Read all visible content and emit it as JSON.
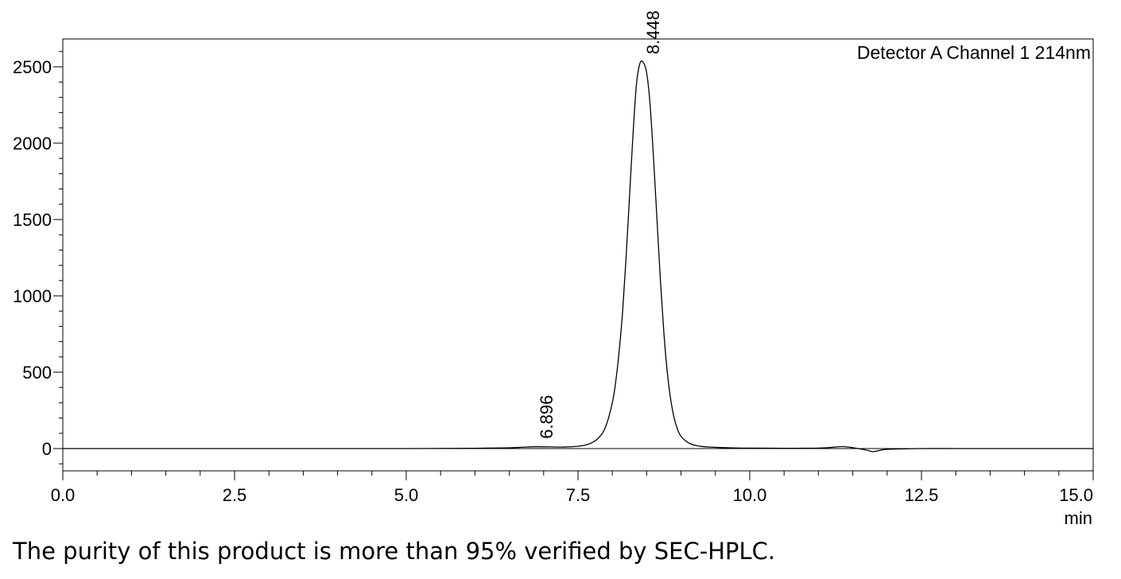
{
  "chart_data": {
    "type": "line",
    "legend": "Detector A Channel 1 214nm",
    "legend_position": "top-right",
    "x_unit": "min",
    "xlim": [
      0,
      15
    ],
    "ylim": [
      -150,
      2700
    ],
    "x_ticks": [
      0,
      2.5,
      5,
      7.5,
      10,
      12.5,
      15
    ],
    "x_tick_labels": [
      "0.0",
      "2.5",
      "5.0",
      "7.5",
      "10.0",
      "12.5",
      "15.0"
    ],
    "y_ticks": [
      0,
      500,
      1000,
      1500,
      2000,
      2500
    ],
    "y_tick_labels": [
      "0",
      "500",
      "1000",
      "1500",
      "2000",
      "2500"
    ],
    "grid": false,
    "baseline": 0,
    "peaks": [
      {
        "label": "6.896",
        "x": 6.896,
        "y": 12
      },
      {
        "label": "8.448",
        "x": 8.448,
        "y": 2530
      }
    ],
    "series": [
      {
        "x": [
          0,
          0.5,
          1,
          2,
          3,
          4,
          5,
          5.5,
          6,
          6.5,
          6.7,
          6.9,
          7.1,
          7.3,
          7.5,
          7.6,
          7.7,
          7.8,
          7.9,
          8.0,
          8.05,
          8.1,
          8.15,
          8.2,
          8.25,
          8.3,
          8.35,
          8.4,
          8.448,
          8.5,
          8.55,
          8.6,
          8.65,
          8.7,
          8.75,
          8.8,
          8.85,
          8.9,
          8.95,
          9.0,
          9.1,
          9.2,
          9.3,
          9.5,
          9.8,
          10,
          10.5,
          11,
          11.2,
          11.35,
          11.5,
          11.7,
          11.8,
          12,
          12.5,
          13,
          14,
          15
        ],
        "y": [
          0,
          0,
          0,
          0,
          0,
          0,
          0,
          1,
          2,
          5,
          9,
          12,
          11,
          10,
          15,
          22,
          38,
          70,
          140,
          300,
          440,
          640,
          900,
          1250,
          1650,
          2050,
          2380,
          2520,
          2530,
          2460,
          2250,
          1900,
          1500,
          1100,
          760,
          500,
          320,
          200,
          125,
          80,
          40,
          22,
          14,
          8,
          4,
          3,
          2,
          3,
          8,
          13,
          6,
          -10,
          -20,
          -5,
          0,
          0,
          0,
          0
        ]
      }
    ]
  },
  "caption": "The purity of this product is more than 95% verified by SEC-HPLC."
}
